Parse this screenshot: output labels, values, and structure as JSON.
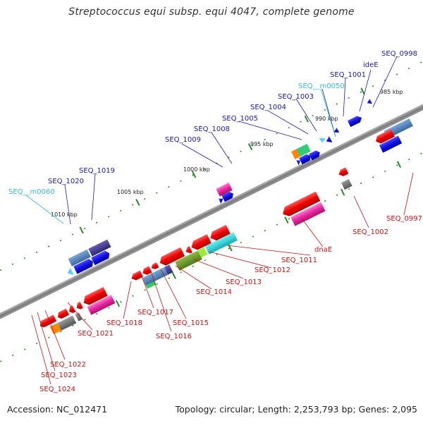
{
  "title": "Streptococcus equi subsp. equi 4047, complete genome",
  "footer": {
    "accession": "Accession: NC_012471",
    "topology": "Topology: circular; Length: 2,253,793 bp; Genes: 2,095"
  },
  "colors": {
    "forward_label": "#1a1aa8",
    "rna_label": "#33bbdd",
    "reverse_label": "#cc1111",
    "backbone": "#888888",
    "tick_dot": "#2a8a2a"
  },
  "ticks": [
    "985 kbp",
    "990 kbp",
    "995 kbp",
    "1000 kbp",
    "1005 kbp",
    "1010 kbp"
  ],
  "forward_labels": [
    "SEQ_0998",
    "ideE",
    "SEQ_1001",
    "SEQ__m0050",
    "SEQ_1003",
    "SEQ_1004",
    "SEQ_1005",
    "SEQ_1008",
    "SEQ_1009",
    "SEQ_1019",
    "SEQ_1020",
    "SEQ__m0060"
  ],
  "reverse_labels": [
    "SEQ_0997",
    "SEQ_1002",
    "dnaE",
    "SEQ_1011",
    "SEQ_1012",
    "SEQ_1013",
    "SEQ_1014",
    "SEQ_1015",
    "SEQ_1016",
    "SEQ_1017",
    "SEQ_1018",
    "SEQ_1021",
    "SEQ_1022",
    "SEQ_1023",
    "SEQ_1024"
  ]
}
